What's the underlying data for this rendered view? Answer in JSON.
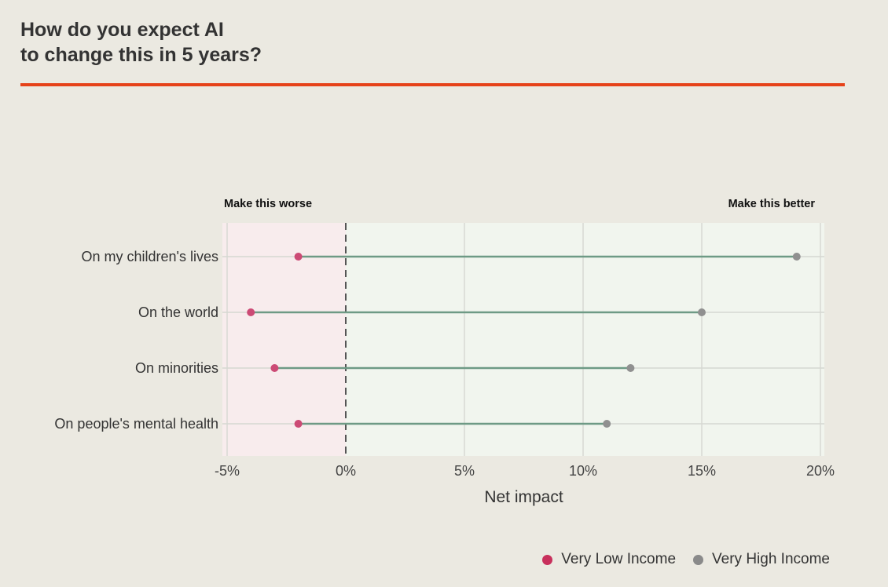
{
  "title": {
    "line1": "How do you expect AI",
    "line2": "to change this in 5 years?"
  },
  "colors": {
    "accent": "#e64219",
    "background": "#ebe9e1",
    "worse_zone": "#f8eced",
    "better_zone": "#f1f5ee",
    "grid": "#d6d8d2",
    "connector": "#6e9a85",
    "zero_line": "#555555",
    "low_income": "#cc4a75",
    "high_income": "#909090",
    "legend_low": "#c8305c",
    "legend_high": "#8a8a8a"
  },
  "chart_data": {
    "type": "dumbbell",
    "xlabel": "Net impact",
    "xlim": [
      -5,
      20
    ],
    "xticks": [
      -5,
      0,
      5,
      10,
      15,
      20
    ],
    "xtick_labels": [
      "-5%",
      "0%",
      "5%",
      "10%",
      "15%",
      "20%"
    ],
    "zone_labels": {
      "worse": "Make this worse",
      "better": "Make this better"
    },
    "categories": [
      "On my children's lives",
      "On the world",
      "On minorities",
      "On people's mental health"
    ],
    "series": [
      {
        "name": "Very Low Income",
        "color_key": "low_income",
        "values": [
          -2,
          -4,
          -3,
          -2
        ]
      },
      {
        "name": "Very High Income",
        "color_key": "high_income",
        "values": [
          19,
          15,
          12,
          11
        ]
      }
    ]
  },
  "legend": {
    "items": [
      {
        "label": "Very Low Income",
        "color_key": "legend_low"
      },
      {
        "label": "Very High Income",
        "color_key": "legend_high"
      }
    ]
  }
}
